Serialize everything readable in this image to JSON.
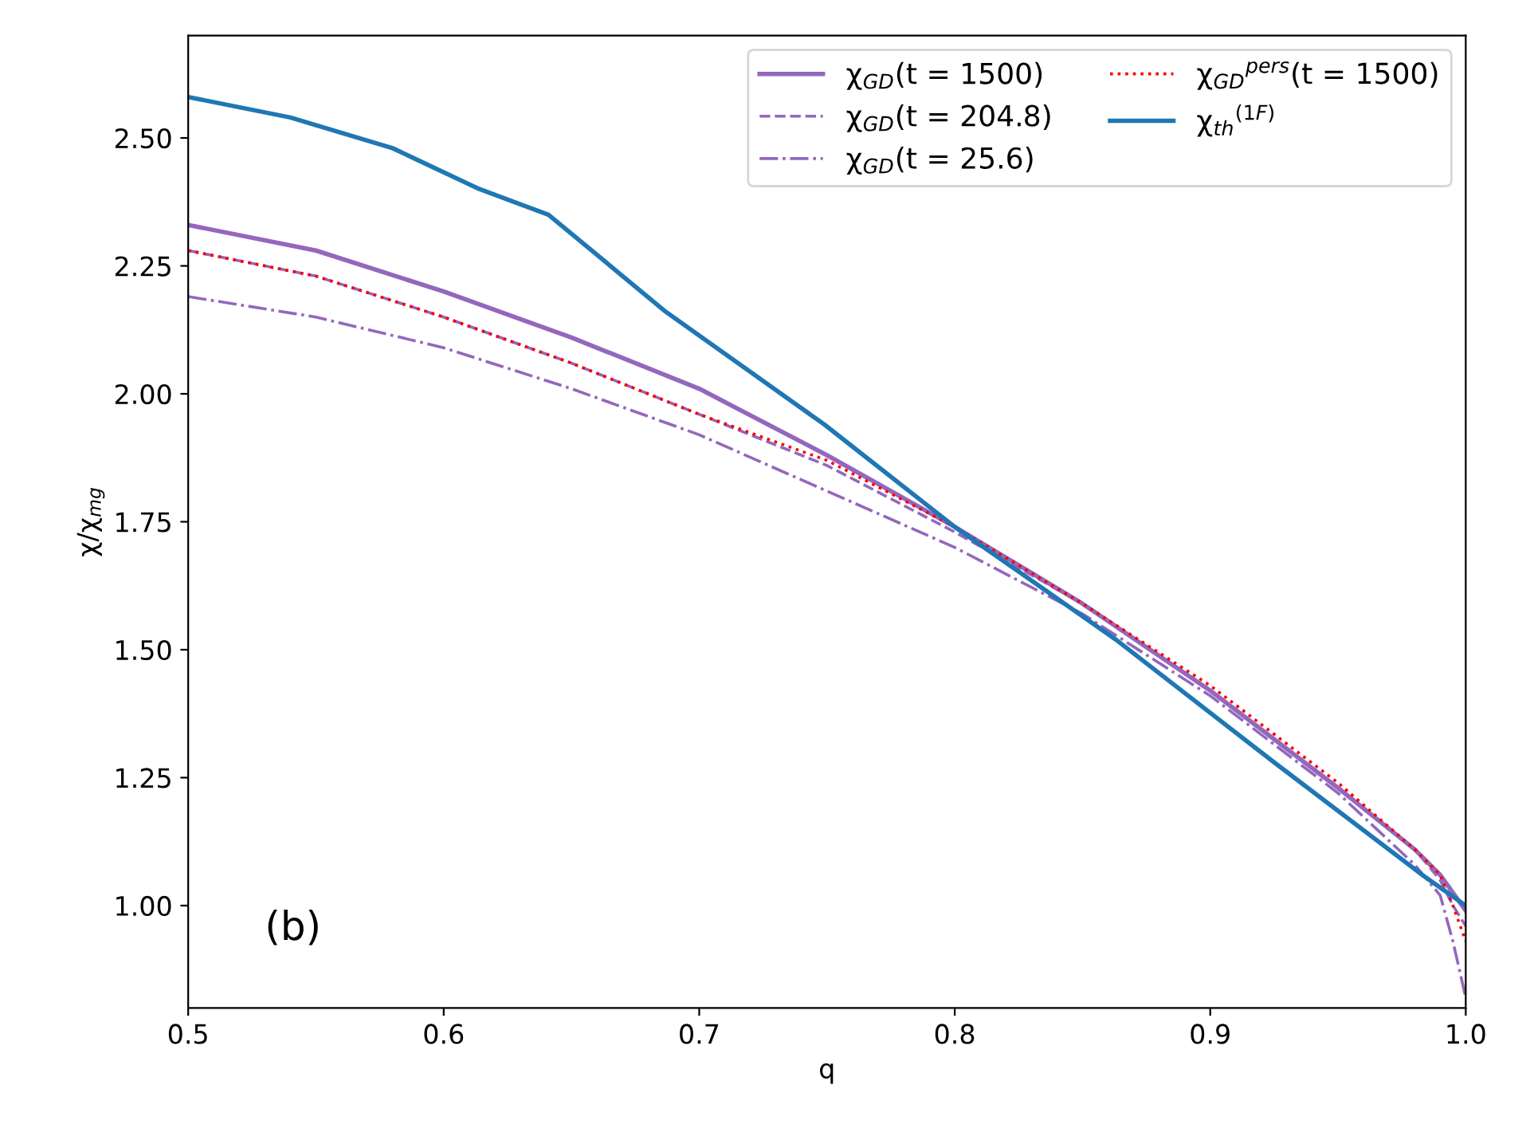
{
  "chart_data": {
    "type": "line",
    "xlabel": "q",
    "ylabel": "χ/χ$_{mg}$",
    "xlim": [
      0.5,
      1.0
    ],
    "ylim": [
      0.8,
      2.7
    ],
    "xticks": [
      0.5,
      0.6,
      0.7,
      0.8,
      0.9,
      {
        "value": 1.0,
        "label": "1.0"
      }
    ],
    "yticks": [
      {
        "value": 1.0,
        "label": "1.00"
      },
      {
        "value": 1.25,
        "label": "1.25"
      },
      {
        "value": 1.5,
        "label": "1.50"
      },
      {
        "value": 1.75,
        "label": "1.75"
      },
      {
        "value": 2.0,
        "label": "2.00"
      },
      {
        "value": 2.25,
        "label": "2.25"
      },
      {
        "value": 2.5,
        "label": "2.50"
      }
    ],
    "grid": false,
    "legend": "top right",
    "marker": "none",
    "annotations": [
      "(b)"
    ],
    "series": [
      {
        "name": "χ$_{GD}$(t = 1500)",
        "color": "#9467bd",
        "line_style": "solid",
        "x": [
          0.5,
          0.55,
          0.6,
          0.65,
          0.7,
          0.75,
          0.8,
          0.85,
          0.9,
          0.95,
          0.98,
          0.99,
          1.0
        ],
        "values": [
          2.33,
          2.28,
          2.2,
          2.11,
          2.01,
          1.88,
          1.74,
          1.59,
          1.42,
          1.23,
          1.11,
          1.06,
          0.99
        ]
      },
      {
        "name": "χ$_{GD}$(t = 204.8)",
        "color": "#9467bd",
        "line_style": "dashed",
        "x": [
          0.5,
          0.55,
          0.6,
          0.65,
          0.7,
          0.75,
          0.8,
          0.85,
          0.9,
          0.95,
          0.98,
          0.99,
          0.995,
          1.0
        ],
        "values": [
          2.28,
          2.23,
          2.15,
          2.06,
          1.96,
          1.86,
          1.73,
          1.59,
          1.42,
          1.23,
          1.11,
          1.05,
          1.0,
          0.96
        ]
      },
      {
        "name": "χ$_{GD}$(t = 25.6)",
        "color": "#9467bd",
        "line_style": "dashdot",
        "x": [
          0.5,
          0.55,
          0.6,
          0.65,
          0.7,
          0.75,
          0.8,
          0.85,
          0.9,
          0.95,
          0.98,
          0.99,
          0.995,
          1.0
        ],
        "values": [
          2.19,
          2.15,
          2.09,
          2.01,
          1.92,
          1.81,
          1.7,
          1.57,
          1.41,
          1.22,
          1.08,
          1.02,
          0.93,
          0.82
        ]
      },
      {
        "name": "χ$_{GD}$$^{pers}$(t = 1500)",
        "color": "#ff0000",
        "line_style": "dotted",
        "x": [
          0.5,
          0.55,
          0.6,
          0.65,
          0.7,
          0.75,
          0.8,
          0.85,
          0.9,
          0.95,
          0.98,
          0.99,
          0.995,
          1.0
        ],
        "values": [
          2.28,
          2.23,
          2.15,
          2.06,
          1.96,
          1.87,
          1.74,
          1.59,
          1.43,
          1.24,
          1.11,
          1.06,
          1.0,
          0.93
        ]
      },
      {
        "name": "χ$_{th}$$^{(1F)}$",
        "color": "#1f77b4",
        "line_style": "solid",
        "x": [
          0.5,
          0.54,
          0.58,
          0.614,
          0.641,
          0.687,
          0.749,
          0.8,
          0.863,
          0.925,
          0.983,
          1.0
        ],
        "values": [
          2.58,
          2.54,
          2.48,
          2.4,
          2.35,
          2.16,
          1.94,
          1.74,
          1.52,
          1.28,
          1.06,
          1.0
        ]
      }
    ]
  }
}
